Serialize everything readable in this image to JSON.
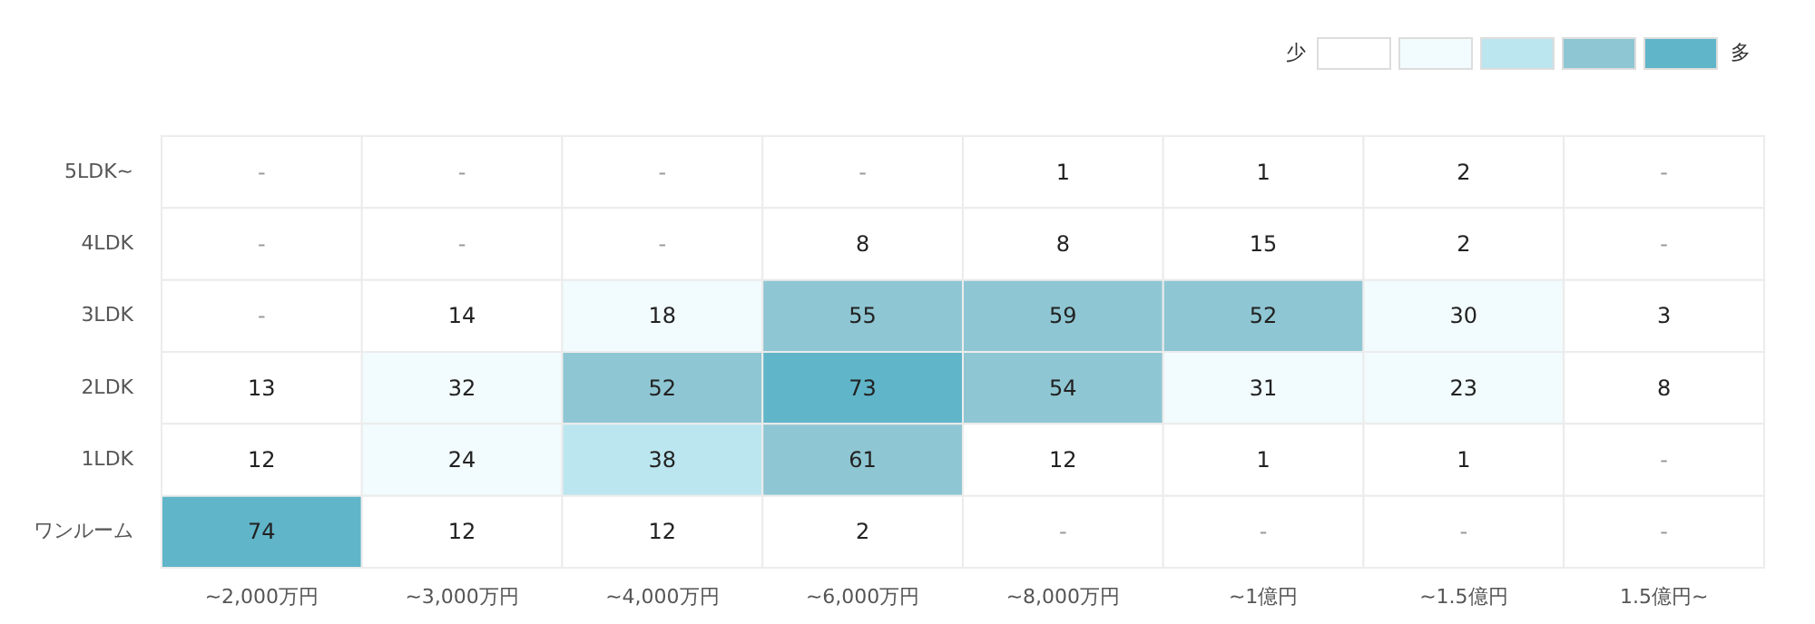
{
  "chart_data": {
    "type": "heatmap",
    "categories": [
      "~2,000万円",
      "~3,000万円",
      "~4,000万円",
      "~6,000万円",
      "~8,000万円",
      "~1億円",
      "~1.5億円",
      "1.5億円~"
    ],
    "y_categories": [
      "5LDK~",
      "4LDK",
      "3LDK",
      "2LDK",
      "1LDK",
      "ワンルーム"
    ],
    "cells": [
      [
        null,
        null,
        null,
        null,
        1,
        1,
        2,
        null
      ],
      [
        null,
        null,
        null,
        8,
        8,
        15,
        2,
        null
      ],
      [
        null,
        14,
        18,
        55,
        59,
        52,
        30,
        3
      ],
      [
        13,
        32,
        52,
        73,
        54,
        31,
        23,
        8
      ],
      [
        12,
        24,
        38,
        61,
        12,
        1,
        1,
        null
      ],
      [
        74,
        12,
        12,
        2,
        null,
        null,
        null,
        null
      ]
    ],
    "cell_labels": [
      [
        "-",
        "-",
        "-",
        "-",
        "1",
        "1",
        "2",
        "-"
      ],
      [
        "-",
        "-",
        "-",
        "8",
        "8",
        "15",
        "2",
        "-"
      ],
      [
        "-",
        "14",
        "18",
        "55",
        "59",
        "52",
        "30",
        "3"
      ],
      [
        "13",
        "32",
        "52",
        "73",
        "54",
        "31",
        "23",
        "8"
      ],
      [
        "12",
        "24",
        "38",
        "61",
        "12",
        "1",
        "1",
        "-"
      ],
      [
        "74",
        "12",
        "12",
        "2",
        "-",
        "-",
        "-",
        "-"
      ]
    ],
    "colors": [
      "#ffffff",
      "#f2fbfd",
      "#bce6ef",
      "#8fc6d3",
      "#60b5c9"
    ],
    "annotations": [
      "少",
      "多"
    ],
    "data_labels": true
  }
}
